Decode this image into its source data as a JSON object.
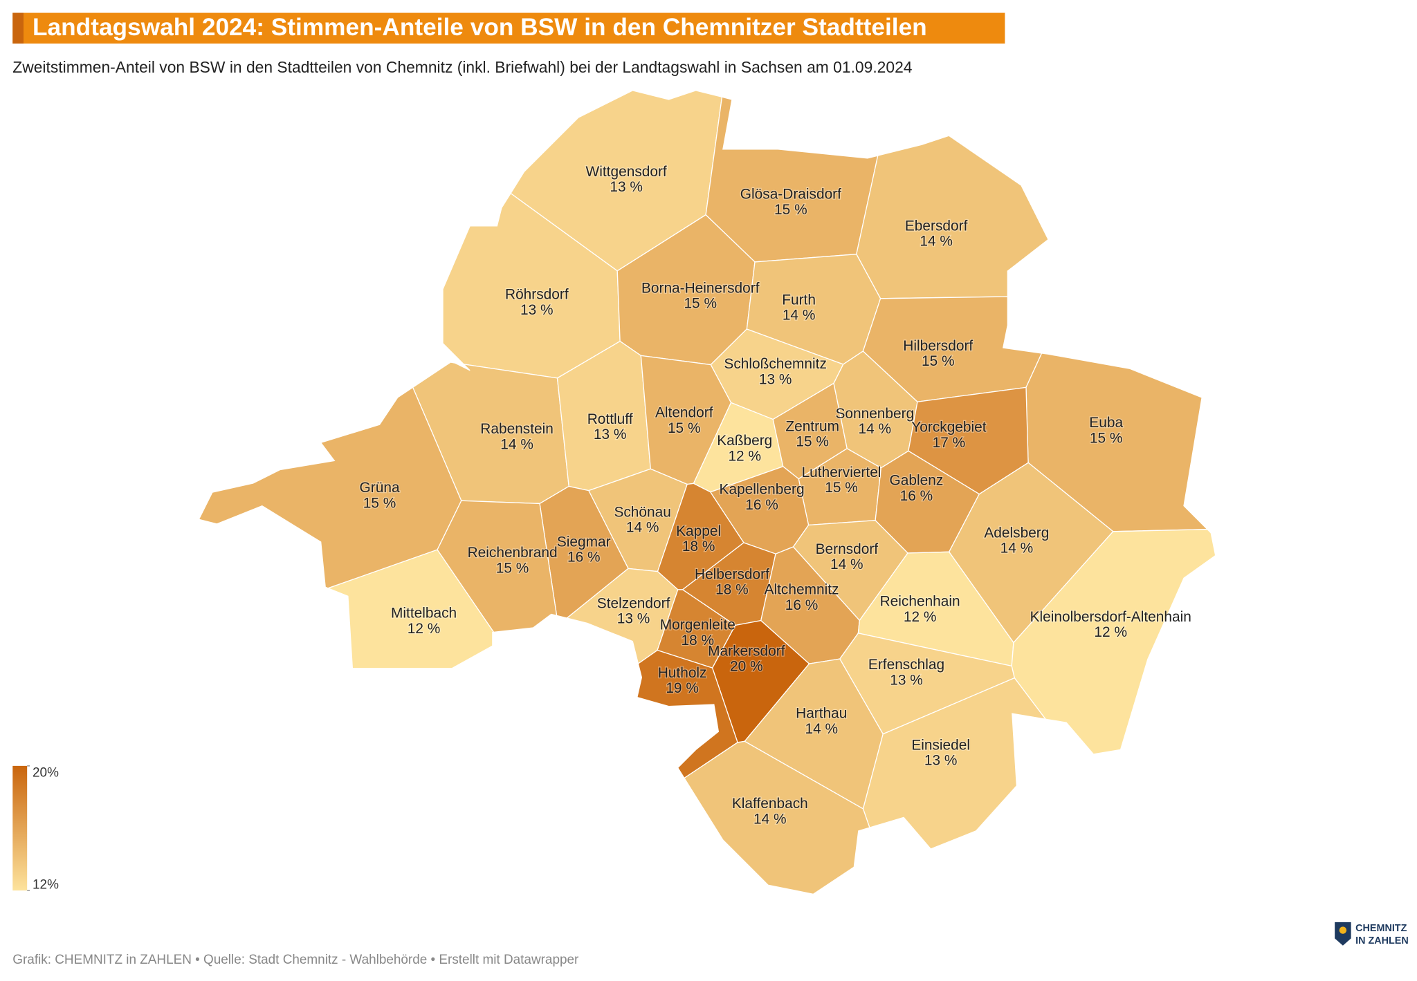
{
  "chart_data": {
    "type": "choropleth",
    "title": "Landtagswahl 2024: Stimmen-Anteile von BSW in den Chemnitzer Stadtteilen",
    "subtitle": "Zweitstimmen-Anteil von BSW in den Stadtteilen von Chemnitz (inkl. Briefwahl) bei der Landtagswahl in Sachsen am 01.09.2024",
    "categories": [
      "Wittgensdorf",
      "Glösa-Draisdorf",
      "Ebersdorf",
      "Röhrsdorf",
      "Borna-Heinersdorf",
      "Furth",
      "Hilbersdorf",
      "Schloßchemnitz",
      "Euba",
      "Rabenstein",
      "Rottluff",
      "Altendorf",
      "Kaßberg",
      "Zentrum",
      "Sonnenberg",
      "Yorckgebiet",
      "Lutherviertel",
      "Gablenz",
      "Kapellenberg",
      "Grüna",
      "Schönau",
      "Kappel",
      "Siegmar",
      "Reichenbrand",
      "Adelsberg",
      "Bernsdorf",
      "Helbersdorf",
      "Altchemnitz",
      "Reichenhain",
      "Kleinolbersdorf-Altenhain",
      "Mittelbach",
      "Stelzendorf",
      "Morgenleite",
      "Markersdorf",
      "Erfenschlag",
      "Hutholz",
      "Harthau",
      "Einsiedel",
      "Klaffenbach"
    ],
    "values": [
      13,
      15,
      14,
      13,
      15,
      14,
      15,
      13,
      15,
      14,
      13,
      15,
      12,
      15,
      14,
      17,
      15,
      16,
      16,
      15,
      14,
      18,
      16,
      15,
      14,
      14,
      18,
      16,
      12,
      12,
      12,
      13,
      18,
      20,
      13,
      19,
      14,
      13,
      14
    ],
    "value_labels": [
      "13 %",
      "15 %",
      "14 %",
      "13 %",
      "15 %",
      "14 %",
      "15 %",
      "13 %",
      "15 %",
      "14 %",
      "13 %",
      "15 %",
      "12 %",
      "15 %",
      "14 %",
      "17 %",
      "15 %",
      "16 %",
      "16 %",
      "15 %",
      "14 %",
      "18 %",
      "16 %",
      "15 %",
      "14 %",
      "14 %",
      "18 %",
      "16 %",
      "12 %",
      "12 %",
      "12 %",
      "13 %",
      "18 %",
      "20 %",
      "13 %",
      "19 %",
      "14 %",
      "13 %",
      "14 %"
    ],
    "color_low": "#fde39d",
    "color_high": "#c9650d",
    "colorlim": [
      12,
      20
    ],
    "colorticks": [
      {
        "value": 20,
        "label": "20%"
      },
      {
        "value": 12,
        "label": "12%"
      }
    ],
    "source": "Grafik: CHEMNITZ in ZAHLEN • Quelle: Stadt Chemnitz - Wahlbehörde • Erstellt mit Datawrapper",
    "logo": [
      "CHEMNITZ",
      "IN ZAHLEN"
    ]
  }
}
